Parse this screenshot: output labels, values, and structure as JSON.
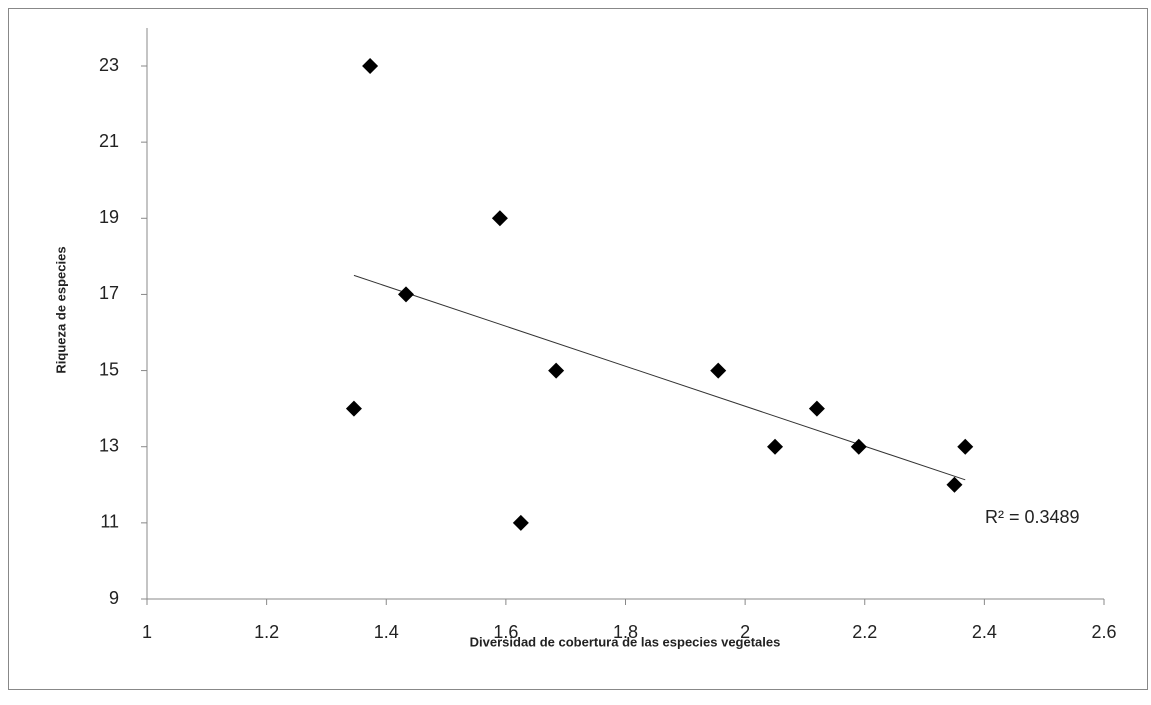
{
  "chart_data": {
    "type": "scatter",
    "x_label": "Diversidad de cobertura de las especies vegetales",
    "y_label": "Riqueza de especies",
    "series": [
      {
        "color": "#000000",
        "x": [
          1.373,
          1.59,
          1.433,
          1.684,
          1.346,
          1.625,
          1.955,
          2.05,
          2.12,
          2.19,
          2.35,
          2.368
        ],
        "values": [
          23,
          19,
          17,
          15,
          14,
          11,
          15,
          13,
          14,
          13,
          12,
          13
        ]
      }
    ],
    "trendline": {
      "x": [
        1.346,
        2.368
      ],
      "values": [
        17.5,
        12.13
      ],
      "color": "#333333"
    },
    "annotation": "R² = 0.3489",
    "xlim": [
      1,
      2.6
    ],
    "xticks": [
      1,
      1.2,
      1.4,
      1.6,
      1.8,
      2,
      2.2,
      2.4,
      2.6
    ],
    "ylim": [
      9,
      23
    ],
    "yticks": [
      9,
      11,
      13,
      15,
      17,
      19,
      21,
      23
    ]
  }
}
